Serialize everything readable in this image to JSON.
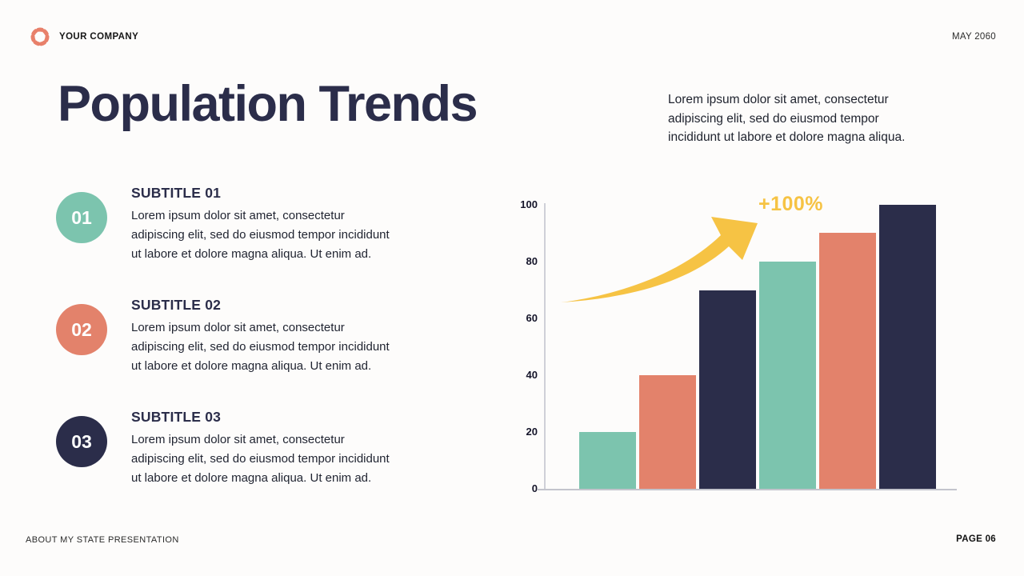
{
  "header": {
    "company": "YOUR COMPANY",
    "date": "MAY 2060"
  },
  "title": "Population Trends",
  "intro_lines": [
    "Lorem ipsum dolor sit amet, consectetur",
    "adipiscing elit, sed do eiusmod tempor",
    "incididunt ut labore et dolore magna aliqua."
  ],
  "items": [
    {
      "number": "01",
      "heading": "SUBTITLE 01",
      "color": "#7cc4ae",
      "lines": [
        "Lorem ipsum dolor sit amet, consectetur",
        "adipiscing elit, sed do eiusmod tempor incididunt",
        "ut labore et dolore magna aliqua. Ut enim ad."
      ]
    },
    {
      "number": "02",
      "heading": "SUBTITLE 02",
      "color": "#e3826b",
      "lines": [
        "Lorem ipsum dolor sit amet, consectetur",
        "adipiscing elit, sed do eiusmod tempor incididunt",
        "ut labore et dolore magna aliqua. Ut enim ad."
      ]
    },
    {
      "number": "03",
      "heading": "SUBTITLE 03",
      "color": "#2b2d4a",
      "lines": [
        "Lorem ipsum dolor sit amet, consectetur",
        "adipiscing elit, sed do eiusmod tempor incididunt",
        "ut labore et dolore magna aliqua. Ut enim ad."
      ]
    }
  ],
  "chart_data": {
    "type": "bar",
    "categories": [
      "",
      "",
      "",
      "",
      "",
      ""
    ],
    "values": [
      20,
      40,
      70,
      80,
      90,
      100
    ],
    "bar_colors": [
      "#7cc4ae",
      "#e3826b",
      "#2b2d4a",
      "#7cc4ae",
      "#e3826b",
      "#2b2d4a"
    ],
    "y_ticks": [
      0,
      20,
      40,
      60,
      80,
      100
    ],
    "ylim": [
      0,
      100
    ],
    "grid": false,
    "legend": false,
    "title": "",
    "xlabel": "",
    "ylabel": "",
    "annotation": {
      "text": "+100%",
      "color": "#f6c344"
    },
    "arrow_color": "#f6c344"
  },
  "footer": {
    "left": "ABOUT MY STATE PRESENTATION",
    "right": "PAGE 06"
  },
  "colors": {
    "teal": "#7cc4ae",
    "salmon": "#e3826b",
    "navy": "#2b2d4a",
    "yellow": "#f6c344",
    "logo": "#e8806a",
    "background": "#fdfcfb",
    "axis": "#c3c4cc"
  }
}
